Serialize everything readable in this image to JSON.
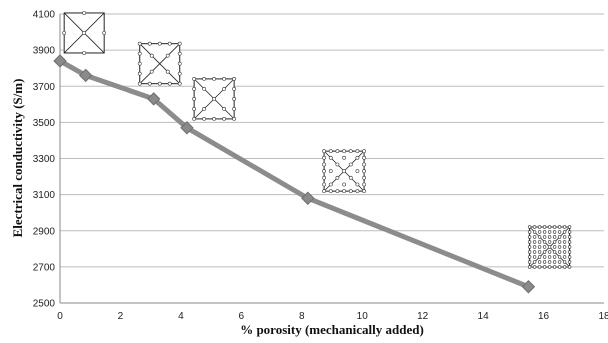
{
  "chart_data": {
    "type": "line",
    "xlabel": "% porosity (mechanically added)",
    "ylabel": "Electrical conductivity (S/m)",
    "xlim": [
      0,
      18
    ],
    "ylim": [
      2500,
      4100
    ],
    "xticks": [
      0,
      2,
      4,
      6,
      8,
      10,
      12,
      14,
      16,
      18
    ],
    "yticks": [
      2500,
      2700,
      2900,
      3100,
      3300,
      3500,
      3700,
      3900,
      4100
    ],
    "grid": "horizontal",
    "series": [
      {
        "x": [
          0,
          0.85,
          3.1,
          4.2,
          8.2,
          15.5
        ],
        "y": [
          3840,
          3760,
          3630,
          3470,
          3080,
          2590
        ]
      }
    ],
    "colors": {
      "line": "#8c8c8c",
      "marker": "#8a8a8a"
    },
    "insets": [
      {
        "name": "cell-inset-0",
        "x": 0.8,
        "y": 3995,
        "pores": 4
      },
      {
        "name": "cell-inset-1",
        "x": 3.3,
        "y": 3825,
        "pores": 16
      },
      {
        "name": "cell-inset-2",
        "x": 5.1,
        "y": 3630,
        "pores": 32
      },
      {
        "name": "cell-inset-3",
        "x": 9.4,
        "y": 3230,
        "pores": 48
      },
      {
        "name": "cell-inset-4",
        "x": 16.2,
        "y": 2810,
        "pores": 96
      }
    ]
  }
}
